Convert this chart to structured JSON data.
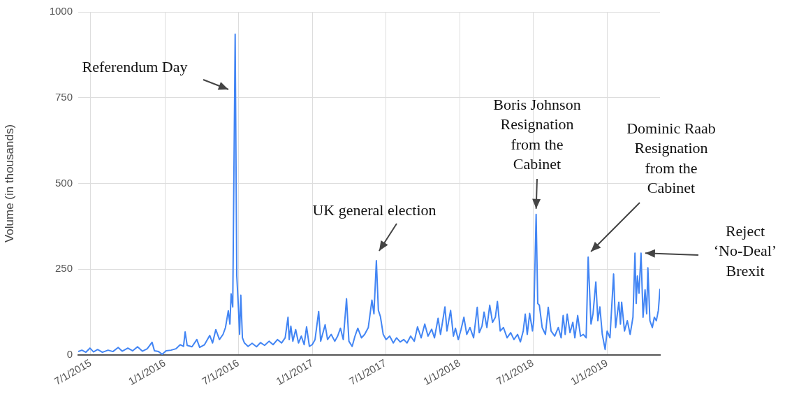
{
  "chart_data": {
    "type": "line",
    "ylabel": "Volume (in thousands)",
    "xlim": [
      "2015-05-31",
      "2019-05-12"
    ],
    "ylim": [
      0,
      1000
    ],
    "yticks": [
      0,
      250,
      500,
      750,
      1000
    ],
    "xticks": [
      {
        "value": "2015-07-01",
        "label": "7/1/2015"
      },
      {
        "value": "2016-01-01",
        "label": "1/1/2016"
      },
      {
        "value": "2016-07-01",
        "label": "7/1/2016"
      },
      {
        "value": "2017-01-01",
        "label": "1/1/2017"
      },
      {
        "value": "2017-07-01",
        "label": "7/1/2017"
      },
      {
        "value": "2018-01-01",
        "label": "1/1/2018"
      },
      {
        "value": "2018-07-01",
        "label": "7/1/2018"
      },
      {
        "value": "2019-01-01",
        "label": "1/1/2019"
      }
    ],
    "grid": true,
    "legend": false,
    "marker": "none",
    "line_style": "solid",
    "annotations": [
      "Referendum Day",
      {
        "text": "UK general election",
        "x": "2017-06-08",
        "y": 275
      },
      {
        "text": "Boris Johnson\nResignation\nfrom the\nCabinet",
        "x": "2018-07-09",
        "y": 410
      },
      {
        "text": "Dominic Raab\nResignation\nfrom the\nCabinet",
        "x": "2018-11-15",
        "y": 285
      },
      {
        "text": "Reject\n‘No-Deal’\nBrexit",
        "x": "2019-03-26",
        "y": 297
      }
    ],
    "x": [
      "2015-05-31",
      "2015-06-09",
      "2015-06-19",
      "2015-06-29",
      "2015-07-08",
      "2015-07-18",
      "2015-07-30",
      "2015-08-13",
      "2015-08-25",
      "2015-09-07",
      "2015-09-17",
      "2015-10-01",
      "2015-10-13",
      "2015-10-25",
      "2015-11-06",
      "2015-11-18",
      "2015-11-30",
      "2015-12-06",
      "2015-12-16",
      "2015-12-25",
      "2016-01-04",
      "2016-01-16",
      "2016-01-28",
      "2016-02-08",
      "2016-02-16",
      "2016-02-20",
      "2016-02-25",
      "2016-03-08",
      "2016-03-20",
      "2016-03-27",
      "2016-04-08",
      "2016-04-21",
      "2016-04-28",
      "2016-05-06",
      "2016-05-15",
      "2016-05-24",
      "2016-05-30",
      "2016-06-06",
      "2016-06-10",
      "2016-06-13",
      "2016-06-17",
      "2016-06-23",
      "2016-06-27",
      "2016-07-01",
      "2016-07-04",
      "2016-07-07",
      "2016-07-11",
      "2016-07-16",
      "2016-07-25",
      "2016-08-04",
      "2016-08-15",
      "2016-08-25",
      "2016-09-04",
      "2016-09-15",
      "2016-09-25",
      "2016-10-06",
      "2016-10-16",
      "2016-10-25",
      "2016-11-01",
      "2016-11-04",
      "2016-11-08",
      "2016-11-13",
      "2016-11-20",
      "2016-11-27",
      "2016-12-04",
      "2016-12-11",
      "2016-12-17",
      "2016-12-24",
      "2016-12-31",
      "2017-01-07",
      "2017-01-16",
      "2017-01-21",
      "2017-02-01",
      "2017-02-07",
      "2017-02-16",
      "2017-02-25",
      "2017-03-04",
      "2017-03-11",
      "2017-03-18",
      "2017-03-26",
      "2017-04-01",
      "2017-04-09",
      "2017-04-16",
      "2017-04-23",
      "2017-05-02",
      "2017-05-10",
      "2017-05-19",
      "2017-05-28",
      "2017-06-02",
      "2017-06-08",
      "2017-06-13",
      "2017-06-18",
      "2017-06-25",
      "2017-07-02",
      "2017-07-11",
      "2017-07-20",
      "2017-07-28",
      "2017-08-06",
      "2017-08-15",
      "2017-08-23",
      "2017-09-01",
      "2017-09-10",
      "2017-09-18",
      "2017-09-27",
      "2017-10-06",
      "2017-10-14",
      "2017-10-23",
      "2017-10-30",
      "2017-11-08",
      "2017-11-14",
      "2017-11-25",
      "2017-11-30",
      "2017-12-09",
      "2017-12-16",
      "2017-12-21",
      "2017-12-28",
      "2018-01-04",
      "2018-01-11",
      "2018-01-18",
      "2018-01-26",
      "2018-02-04",
      "2018-02-13",
      "2018-02-18",
      "2018-02-25",
      "2018-03-02",
      "2018-03-09",
      "2018-03-16",
      "2018-03-23",
      "2018-03-30",
      "2018-04-04",
      "2018-04-11",
      "2018-04-19",
      "2018-04-28",
      "2018-05-07",
      "2018-05-15",
      "2018-05-24",
      "2018-05-31",
      "2018-06-07",
      "2018-06-12",
      "2018-06-17",
      "2018-06-23",
      "2018-06-30",
      "2018-07-03",
      "2018-07-09",
      "2018-07-13",
      "2018-07-17",
      "2018-07-24",
      "2018-08-01",
      "2018-08-08",
      "2018-08-15",
      "2018-08-24",
      "2018-09-02",
      "2018-09-09",
      "2018-09-14",
      "2018-09-19",
      "2018-09-24",
      "2018-10-01",
      "2018-10-08",
      "2018-10-13",
      "2018-10-20",
      "2018-10-27",
      "2018-11-03",
      "2018-11-10",
      "2018-11-15",
      "2018-11-22",
      "2018-11-27",
      "2018-12-04",
      "2018-12-09",
      "2018-12-14",
      "2018-12-20",
      "2018-12-27",
      "2019-01-01",
      "2019-01-08",
      "2019-01-17",
      "2019-01-22",
      "2019-01-30",
      "2019-02-03",
      "2019-02-06",
      "2019-02-13",
      "2019-02-20",
      "2019-02-27",
      "2019-03-06",
      "2019-03-11",
      "2019-03-14",
      "2019-03-17",
      "2019-03-21",
      "2019-03-26",
      "2019-03-31",
      "2019-04-05",
      "2019-04-09",
      "2019-04-12",
      "2019-04-17",
      "2019-04-23",
      "2019-04-28",
      "2019-05-03",
      "2019-05-08",
      "2019-05-12"
    ],
    "series": [
      {
        "color": "#4285f4",
        "values": [
          10,
          14,
          8,
          20,
          9,
          16,
          8,
          14,
          10,
          22,
          11,
          20,
          12,
          24,
          11,
          18,
          37,
          12,
          10,
          2,
          12,
          14,
          18,
          30,
          25,
          67,
          28,
          24,
          45,
          22,
          30,
          57,
          35,
          74,
          45,
          60,
          80,
          129,
          90,
          178,
          140,
          935,
          231,
          140,
          60,
          174,
          50,
          35,
          25,
          34,
          24,
          36,
          28,
          40,
          30,
          45,
          35,
          50,
          110,
          45,
          84,
          40,
          74,
          35,
          55,
          30,
          82,
          25,
          30,
          45,
          127,
          40,
          88,
          45,
          60,
          40,
          55,
          78,
          45,
          164,
          40,
          25,
          55,
          78,
          50,
          60,
          80,
          160,
          120,
          275,
          130,
          112,
          60,
          45,
          55,
          35,
          50,
          38,
          45,
          35,
          55,
          40,
          82,
          50,
          90,
          55,
          75,
          50,
          107,
          60,
          140,
          70,
          130,
          55,
          78,
          45,
          75,
          110,
          60,
          80,
          50,
          139,
          65,
          85,
          125,
          80,
          145,
          95,
          110,
          156,
          70,
          80,
          50,
          65,
          45,
          60,
          38,
          70,
          119,
          60,
          121,
          70,
          100,
          410,
          150,
          145,
          80,
          60,
          139,
          70,
          55,
          80,
          50,
          115,
          60,
          119,
          65,
          95,
          50,
          115,
          55,
          60,
          50,
          285,
          90,
          120,
          213,
          100,
          140,
          60,
          16,
          70,
          50,
          236,
          80,
          154,
          90,
          154,
          70,
          100,
          60,
          110,
          297,
          150,
          230,
          180,
          297,
          110,
          190,
          120,
          254,
          100,
          80,
          110,
          100,
          130,
          193
        ]
      }
    ]
  }
}
